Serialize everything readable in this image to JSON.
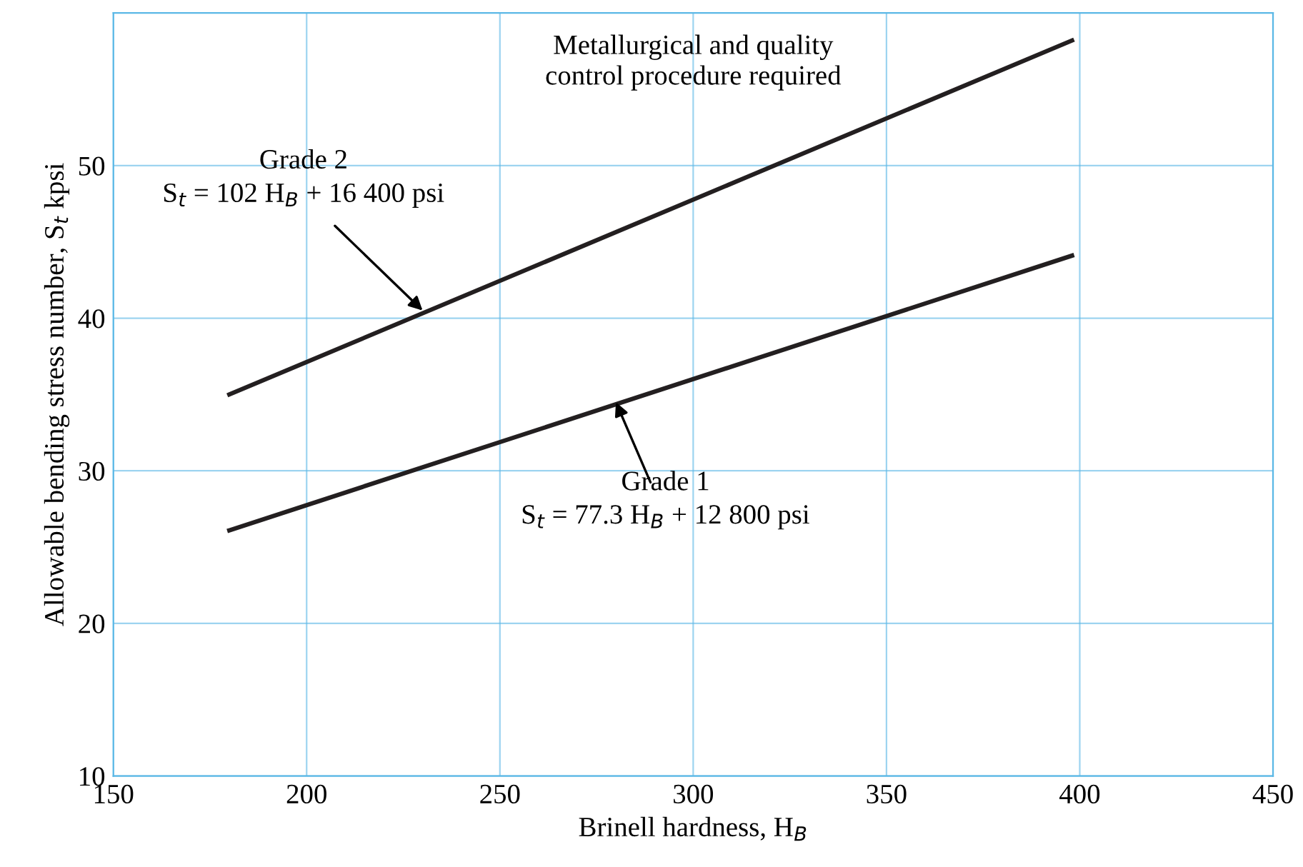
{
  "chart_data": {
    "type": "line",
    "xlabel": "Brinell hardness, H$_{B}$",
    "ylabel": "Allowable bending stress number, S$_{t}$ kpsi",
    "x": [
      180,
      398
    ],
    "series": [
      {
        "color": "#231f20",
        "values": [
          26.1,
          44.1
        ]
      },
      {
        "color": "#231f20",
        "values": [
          35.0,
          58.2
        ]
      }
    ],
    "xlim": [
      150,
      450
    ],
    "xticks": [
      150,
      200,
      250,
      300,
      350,
      400,
      450
    ],
    "ylim": [
      10,
      60
    ],
    "yticks": [
      10,
      20,
      30,
      40,
      50
    ],
    "grid": true,
    "marker": "none",
    "line_style": "solid",
    "annotations": [
      "Metallurgical and quality",
      "control procedure required",
      "Grade 2",
      {
        "text": "S$_{t}$ = 102 H$_{B}$ + 16 400 psi",
        "x": 230,
        "y": 40.5
      },
      "Grade 1",
      {
        "text": "S$_{t}$ = 77.3 H$_{B}$ + 12 800 psi",
        "x": 280,
        "y": 34.5
      }
    ]
  }
}
